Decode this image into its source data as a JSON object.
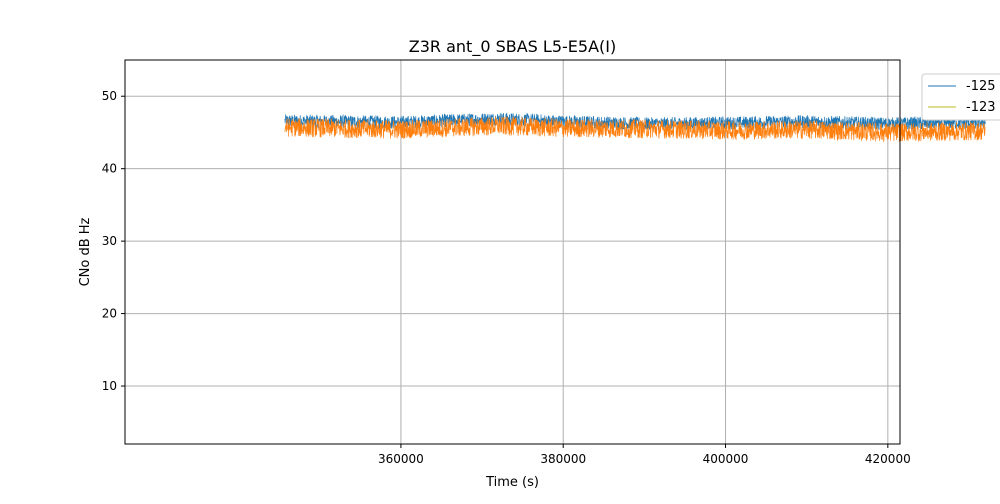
{
  "chart_data": {
    "type": "line",
    "title": "Z3R ant_0 SBAS L5-E5A(I)",
    "xlabel": "Time (s)",
    "ylabel": "CNo dB Hz",
    "xlim": [
      326000,
      421500
    ],
    "ylim": [
      2,
      55
    ],
    "xticks": [
      360000,
      380000,
      400000,
      420000
    ],
    "yticks": [
      10,
      20,
      30,
      40,
      50
    ],
    "grid": true,
    "legend_position": "outside-top-right",
    "series": [
      {
        "name": "-125",
        "color": "#1f77b4",
        "x_range": [
          345700,
          432000
        ],
        "trend": [
          [
            345700,
            46.6
          ],
          [
            360000,
            46.4
          ],
          [
            372000,
            46.9
          ],
          [
            380000,
            46.5
          ],
          [
            390000,
            46.2
          ],
          [
            400000,
            46.3
          ],
          [
            410000,
            46.5
          ],
          [
            420000,
            46.2
          ],
          [
            432000,
            46.4
          ]
        ],
        "noise_band": 0.9
      },
      {
        "name": "-123",
        "color": "#ff7f0e",
        "legend_color": "#bcbd22",
        "x_range": [
          345700,
          432000
        ],
        "trend": [
          [
            345700,
            45.7
          ],
          [
            360000,
            45.4
          ],
          [
            372000,
            45.9
          ],
          [
            380000,
            45.6
          ],
          [
            390000,
            45.5
          ],
          [
            400000,
            45.3
          ],
          [
            410000,
            45.4
          ],
          [
            420000,
            45.0
          ],
          [
            432000,
            45.2
          ]
        ],
        "noise_band": 1.3
      }
    ]
  }
}
